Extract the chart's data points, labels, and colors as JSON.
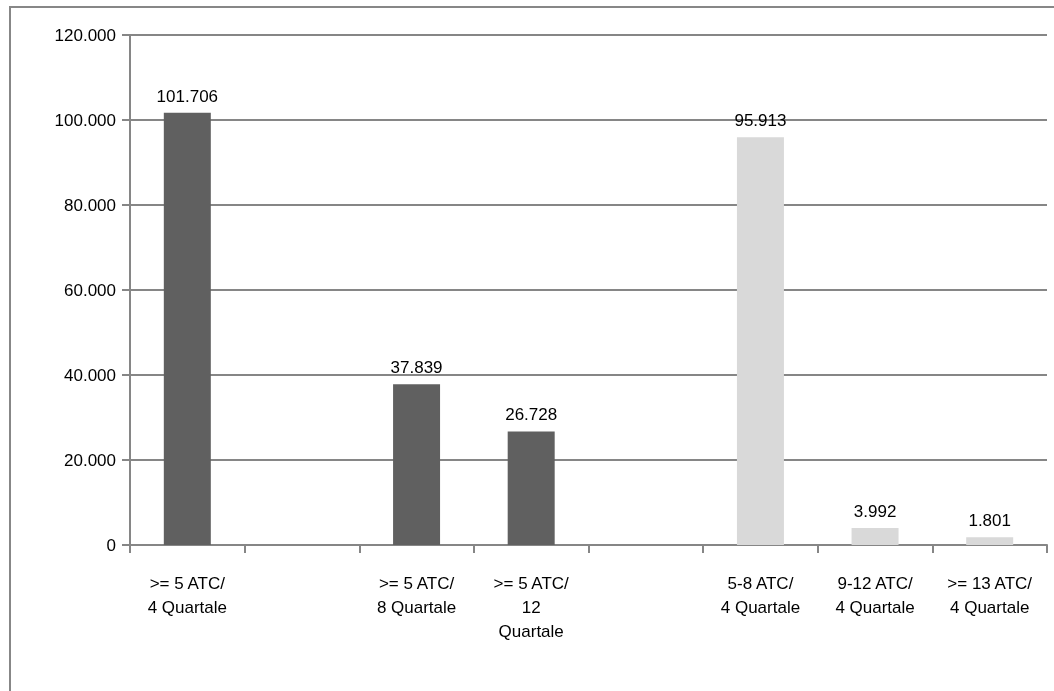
{
  "chart_data": {
    "type": "bar",
    "categories": [
      ">= 5 ATC/\n4 Quartale",
      null,
      ">= 5 ATC/\n8 Quartale",
      ">= 5 ATC/\n12\nQuartale",
      null,
      "5-8 ATC/\n4 Quartale",
      "9-12 ATC/\n4 Quartale",
      ">= 13 ATC/\n4 Quartale"
    ],
    "values": [
      101706,
      null,
      37839,
      26728,
      null,
      95913,
      3992,
      1801
    ],
    "colors": [
      "#606060",
      "#606060",
      "#606060",
      "#606060",
      "#d9d9d9",
      "#d9d9d9",
      "#d9d9d9",
      "#d9d9d9"
    ],
    "value_labels": [
      "101.706",
      null,
      "37.839",
      "26.728",
      null,
      "95.913",
      "3.992",
      "1.801"
    ],
    "ylim": [
      0,
      120000
    ],
    "yticks": [
      0,
      {
        "value": 20000,
        "label": "20.000"
      },
      {
        "value": 40000,
        "label": "40.000"
      },
      {
        "value": 60000,
        "label": "60.000"
      },
      {
        "value": 80000,
        "label": "80.000"
      },
      {
        "value": 100000,
        "label": "100.000"
      },
      {
        "value": 120000,
        "label": "120.000"
      }
    ],
    "grid": "y"
  }
}
